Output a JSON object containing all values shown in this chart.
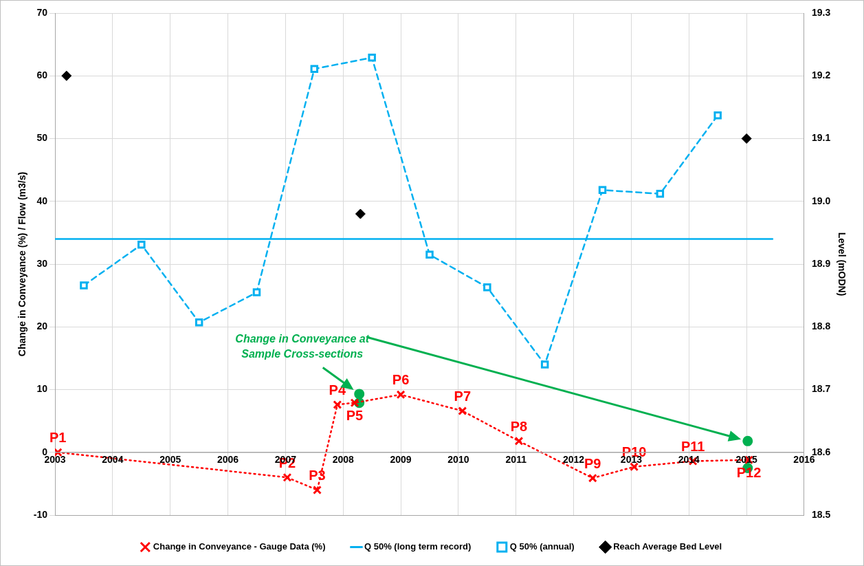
{
  "chart_data": {
    "type": "line",
    "ylabel": "Change in Conveyance (%) / Flow (m3/s)",
    "y2label": "Level (mODN)",
    "xlim": [
      2003,
      2016
    ],
    "xticks": [
      2003,
      2004,
      2005,
      2006,
      2007,
      2008,
      2009,
      2010,
      2011,
      2012,
      2013,
      2014,
      2015,
      2016
    ],
    "ylim": [
      -10,
      70
    ],
    "yticks": [
      -10,
      0,
      10,
      20,
      30,
      40,
      50,
      60,
      70
    ],
    "y2lim": [
      18.5,
      19.3
    ],
    "y2ticks": [
      18.5,
      18.6,
      18.7,
      18.8,
      18.9,
      {
        "value": 19,
        "label": "19.0"
      },
      19.1,
      19.2,
      19.3
    ],
    "grid": true,
    "legend": "bottom",
    "annotations": [
      "Change in Conveyance at Sample Cross-sections"
    ],
    "series": [
      {
        "name": "Change in Conveyance - Gauge Data (%)",
        "type": "line",
        "color": "#ff0000",
        "marker": "cross",
        "line_style": "dotted",
        "x": [
          2003.05,
          2007.03,
          2007.55,
          2007.9,
          2008.2,
          2009.0,
          2010.07,
          2011.05,
          2012.33,
          2013.05,
          2014.07,
          2015.04
        ],
        "values": [
          0,
          -4.0,
          -6.0,
          7.6,
          7.9,
          9.2,
          6.6,
          1.8,
          -4.1,
          -2.3,
          -1.4,
          -1.2
        ],
        "value_labels": [
          "P1",
          "P2",
          "P3",
          "P4",
          "P5",
          "P6",
          "P7",
          "P8",
          "P9",
          "P10",
          "P11",
          "P12"
        ]
      },
      {
        "name": "Q 50% (long term record)",
        "type": "line",
        "color": "#00b0f0",
        "marker": "none",
        "line_style": "solid",
        "x": [
          2003,
          2015.45
        ],
        "values": [
          34,
          34
        ]
      },
      {
        "name": "Q 50% (annual)",
        "type": "line",
        "color": "#00b0f0",
        "marker": "square",
        "line_style": "dashed",
        "x": [
          2003.5,
          2004.5,
          2005.5,
          2006.5,
          2007.5,
          2008.5,
          2009.5,
          2010.5,
          2011.5,
          2012.5,
          2013.5,
          2014.5
        ],
        "values": [
          26.6,
          33.1,
          20.7,
          25.5,
          61.1,
          62.9,
          31.5,
          26.3,
          14.0,
          41.8,
          41.2,
          53.7
        ]
      },
      {
        "name": "Reach Average Bed Level",
        "type": "scatter",
        "color": "#000000",
        "marker": "diamond",
        "axis": "y2",
        "x": [
          2003.2,
          2008.3,
          2015.0
        ],
        "values": [
          19.2,
          18.98,
          19.1
        ]
      },
      {
        "type": "scatter",
        "color": "#00b050",
        "marker": "circle",
        "x": [
          2008.28,
          2015.02
        ],
        "values": [
          9.3,
          1.8
        ]
      },
      {
        "type": "scatter",
        "color": "#00b050",
        "marker": "circle",
        "x": [
          2008.28,
          2015.02
        ],
        "values": [
          7.9,
          -2.5
        ]
      }
    ]
  }
}
